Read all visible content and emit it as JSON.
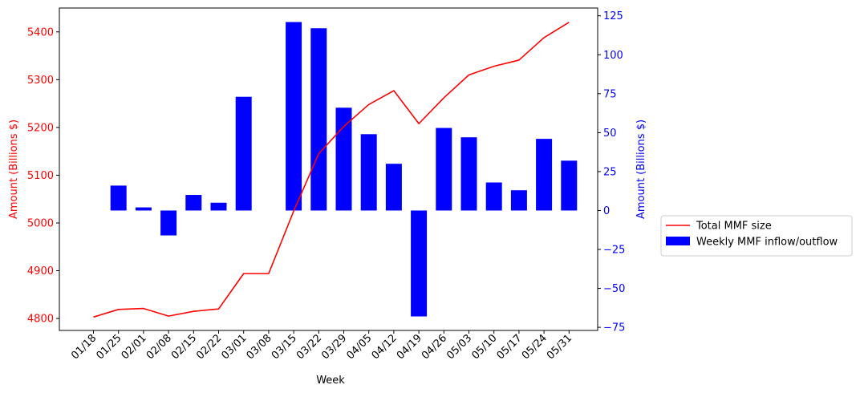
{
  "chart_data": {
    "type": "bar+line",
    "categories": [
      "01/18",
      "01/25",
      "02/01",
      "02/08",
      "02/15",
      "02/22",
      "03/01",
      "03/08",
      "03/15",
      "03/22",
      "03/29",
      "04/05",
      "04/12",
      "04/19",
      "04/26",
      "05/03",
      "05/10",
      "05/17",
      "05/24",
      "05/31"
    ],
    "xlabel": "Week",
    "left_axis": {
      "label": "Amount (Billions $)",
      "color": "#ff0000",
      "ylim": [
        4775,
        5450
      ],
      "ticks": [
        4800,
        4900,
        5000,
        5100,
        5200,
        5300,
        5400
      ]
    },
    "right_axis": {
      "label": "Amount (Billions $)",
      "color": "#0000ff",
      "ylim": [
        -77,
        130
      ],
      "ticks": [
        -75,
        -50,
        -25,
        0,
        25,
        50,
        75,
        100,
        125
      ]
    },
    "series": [
      {
        "name": "Total MMF size",
        "type": "line",
        "axis": "left",
        "color": "#ff0000",
        "values": [
          4803,
          4819,
          4821,
          4805,
          4815,
          4820,
          4894,
          4894,
          5025,
          5145,
          5202,
          5248,
          5277,
          5208,
          5262,
          5310,
          5328,
          5341,
          5388,
          5420
        ]
      },
      {
        "name": "Weekly MMF inflow/outflow",
        "type": "bar",
        "axis": "right",
        "color": "#0000ff",
        "values": [
          null,
          16,
          2,
          -16,
          10,
          5,
          73,
          null,
          121,
          117,
          66,
          49,
          30,
          -68,
          53,
          47,
          18,
          13,
          46,
          32
        ]
      }
    ],
    "legend": "right-outside"
  }
}
